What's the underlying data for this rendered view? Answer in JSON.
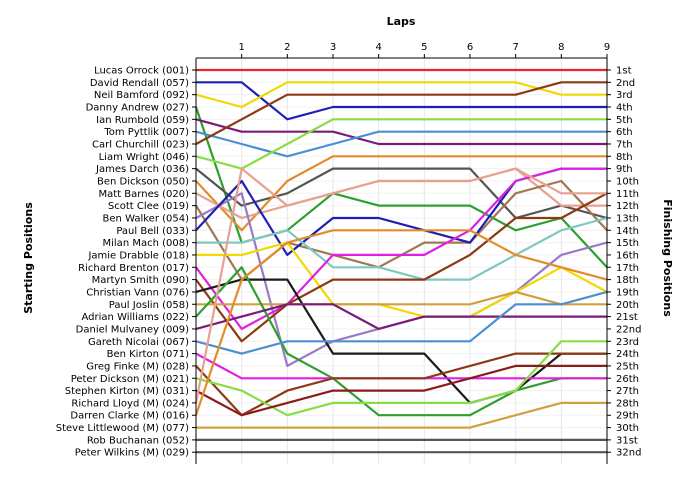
{
  "chart_data": {
    "type": "line",
    "title": "",
    "xlabel": "Laps",
    "ylabel_left": "Starting Positions",
    "ylabel_right": "Finishing Positions",
    "laps": [
      1,
      2,
      3,
      4,
      5,
      6,
      7,
      8,
      9
    ],
    "x_ticks": [
      "1",
      "2",
      "3",
      "4",
      "5",
      "6",
      "7",
      "8",
      "9"
    ],
    "start_labels": [
      "Lucas Orrock (001)",
      "David Rendall (057)",
      "Neil Bamford (092)",
      "Danny Andrew (027)",
      "Ian Rumbold (059)",
      "Tom Pyttlik (007)",
      "Carl Churchill (023)",
      "Liam Wright (046)",
      "James Darch (036)",
      "Ben Dickson (050)",
      "Matt Barnes (020)",
      "Scott Clee (019)",
      "Ben Walker (054)",
      "Paul Bell (033)",
      "Milan Mach (008)",
      "Jamie Drabble (018)",
      "Richard Brenton (017)",
      "Martyn Smith (090)",
      "Christian Vann (076)",
      "Paul Joslin (058)",
      "Adrian Williams (022)",
      "Daniel Mulvaney (009)",
      "Gareth Nicolai (067)",
      "Ben Kirton (071)",
      "Greg Finke (M) (028)",
      "Peter Dickson (M) (021)",
      "Stephen Kirton (M) (031)",
      "Richard Lloyd (M) (024)",
      "Darren Clarke (M) (016)",
      "Steve Littlewood (M) (077)",
      "Rob Buchanan (052)",
      "Peter Wilkins (M) (029)"
    ],
    "finish_labels": [
      "1st",
      "2nd",
      "3rd",
      "4th",
      "5th",
      "6th",
      "7th",
      "8th",
      "9th",
      "10th",
      "11th",
      "12th",
      "13th",
      "14th",
      "15th",
      "16th",
      "17th",
      "18th",
      "19th",
      "20th",
      "21st",
      "22nd",
      "23rd",
      "24th",
      "25th",
      "26th",
      "27th",
      "28th",
      "29th",
      "30th",
      "31st",
      "32nd"
    ],
    "y_range": [
      1,
      32
    ],
    "grid": true,
    "series": [
      {
        "start": 1,
        "color": "#e8262a",
        "positions": [
          1,
          1,
          1,
          1,
          1,
          1,
          1,
          1,
          1
        ]
      },
      {
        "start": 2,
        "color": "#1f1fb4",
        "positions": [
          2,
          5,
          4,
          4,
          4,
          4,
          4,
          4,
          4
        ]
      },
      {
        "start": 3,
        "color": "#f0d800",
        "positions": [
          4,
          2,
          2,
          2,
          2,
          2,
          2,
          3,
          3
        ]
      },
      {
        "start": 4,
        "color": "#2ca02c",
        "positions": [
          15,
          14,
          11,
          12,
          12,
          12,
          14,
          13,
          17
        ]
      },
      {
        "start": 5,
        "color": "#7a1a7a",
        "positions": [
          6,
          6,
          6,
          7,
          7,
          7,
          7,
          7,
          7
        ]
      },
      {
        "start": 6,
        "color": "#4a8fd4",
        "positions": [
          7,
          8,
          7,
          6,
          6,
          6,
          6,
          6,
          6
        ]
      },
      {
        "start": 7,
        "color": "#8c3a14",
        "positions": [
          5,
          3,
          3,
          3,
          3,
          3,
          3,
          2,
          2
        ]
      },
      {
        "start": 8,
        "color": "#88dd44",
        "positions": [
          9,
          7,
          5,
          5,
          5,
          5,
          5,
          5,
          5
        ]
      },
      {
        "start": 9,
        "color": "#555555",
        "positions": [
          12,
          11,
          9,
          9,
          9,
          9,
          13,
          12,
          13
        ]
      },
      {
        "start": 10,
        "color": "#e28c2a",
        "positions": [
          14,
          10,
          8,
          8,
          8,
          8,
          8,
          8,
          8
        ]
      },
      {
        "start": 11,
        "color": "#e8a090",
        "positions": [
          13,
          12,
          11,
          10,
          10,
          10,
          9,
          12,
          12
        ]
      },
      {
        "start": 12,
        "color": "#a07850",
        "positions": [
          18,
          15,
          16,
          17,
          15,
          15,
          11,
          10,
          14
        ]
      },
      {
        "start": 13,
        "color": "#9a7ac8",
        "positions": [
          11,
          25,
          23,
          22,
          21,
          21,
          19,
          16,
          15
        ]
      },
      {
        "start": 14,
        "color": "#1f1fb4",
        "positions": [
          10,
          16,
          13,
          13,
          14,
          15,
          10,
          9,
          9
        ]
      },
      {
        "start": 15,
        "color": "#7fc8c0",
        "positions": [
          15,
          14,
          17,
          17,
          18,
          18,
          16,
          14,
          13
        ]
      },
      {
        "start": 16,
        "color": "#f0d800",
        "positions": [
          16,
          15,
          20,
          20,
          21,
          21,
          19,
          17,
          19
        ]
      },
      {
        "start": 17,
        "color": "#e020e0",
        "positions": [
          22,
          20,
          16,
          16,
          16,
          14,
          10,
          9,
          9
        ]
      },
      {
        "start": 18,
        "color": "#8c3a14",
        "positions": [
          23,
          20,
          18,
          18,
          18,
          16,
          13,
          13,
          11
        ]
      },
      {
        "start": 19,
        "color": "#1a1a1a",
        "positions": [
          18,
          18,
          24,
          24,
          24,
          28,
          27,
          24,
          24
        ]
      },
      {
        "start": 20,
        "color": "#d0a040",
        "positions": [
          20,
          20,
          20,
          20,
          20,
          20,
          19,
          20,
          20
        ]
      },
      {
        "start": 21,
        "color": "#2ca02c",
        "positions": [
          17,
          24,
          26,
          29,
          29,
          29,
          27,
          26,
          26
        ]
      },
      {
        "start": 22,
        "color": "#7a1a7a",
        "positions": [
          21,
          20,
          20,
          22,
          21,
          21,
          21,
          21,
          21
        ]
      },
      {
        "start": 23,
        "color": "#4a8fd4",
        "positions": [
          24,
          23,
          23,
          23,
          23,
          23,
          20,
          20,
          19
        ]
      },
      {
        "start": 24,
        "color": "#e020e0",
        "positions": [
          26,
          26,
          26,
          26,
          26,
          26,
          26,
          26,
          26
        ]
      },
      {
        "start": 25,
        "color": "#8c3a14",
        "positions": [
          29,
          27,
          26,
          26,
          26,
          25,
          24,
          24,
          24
        ]
      },
      {
        "start": 26,
        "color": "#88dd44",
        "positions": [
          27,
          29,
          28,
          28,
          28,
          28,
          27,
          23,
          23
        ]
      },
      {
        "start": 27,
        "color": "#8c1a1a",
        "positions": [
          29,
          28,
          27,
          27,
          27,
          26,
          25,
          25,
          25
        ]
      },
      {
        "start": 28,
        "color": "#e8a090",
        "positions": [
          9,
          12,
          11,
          10,
          10,
          10,
          9,
          11,
          11
        ]
      },
      {
        "start": 29,
        "color": "#e28c2a",
        "positions": [
          18,
          15,
          14,
          14,
          14,
          14,
          16,
          17,
          18
        ]
      },
      {
        "start": 30,
        "color": "#d0a040",
        "positions": [
          30,
          30,
          30,
          30,
          30,
          30,
          29,
          28,
          28
        ]
      },
      {
        "start": 31,
        "color": "#555555",
        "positions": [
          31,
          31,
          31,
          31,
          31,
          31,
          31,
          31,
          31
        ]
      },
      {
        "start": 32,
        "color": "#555555",
        "positions": [
          32,
          32,
          32,
          32,
          32,
          32,
          32,
          32,
          32
        ]
      }
    ]
  }
}
